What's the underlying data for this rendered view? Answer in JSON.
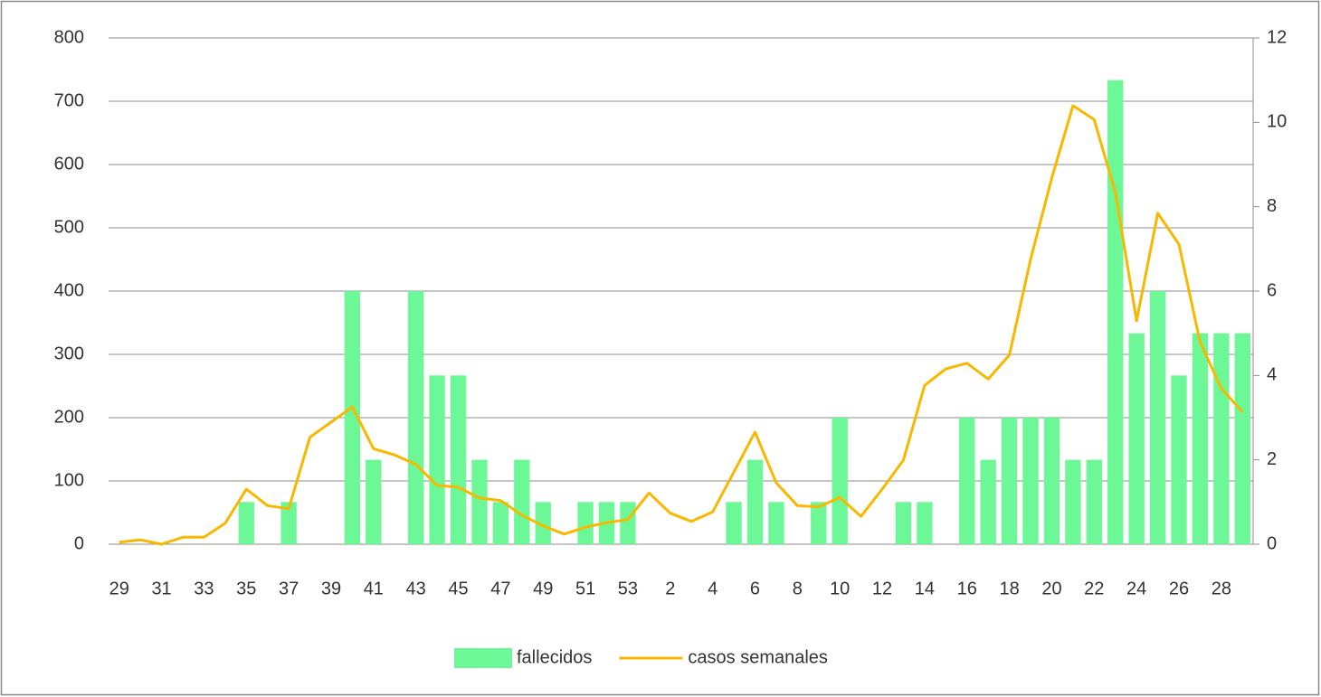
{
  "chart_data": {
    "type": "bar",
    "categories": [
      29,
      null,
      31,
      null,
      33,
      null,
      35,
      null,
      37,
      null,
      39,
      null,
      41,
      null,
      43,
      null,
      45,
      null,
      47,
      null,
      49,
      null,
      51,
      null,
      53,
      null,
      2,
      null,
      4,
      null,
      6,
      null,
      8,
      null,
      10,
      null,
      12,
      null,
      14,
      null,
      16,
      null,
      18,
      null,
      20,
      null,
      22,
      null,
      24,
      null,
      26,
      null,
      28,
      null
    ],
    "series": [
      {
        "name": "fallecidos",
        "type": "bar",
        "axis": "y2",
        "color": "#6cf896",
        "values": [
          0,
          0,
          0,
          0,
          0,
          0,
          1,
          0,
          1,
          0,
          0,
          6,
          2,
          0,
          6,
          4,
          4,
          2,
          1,
          2,
          1,
          0,
          1,
          1,
          1,
          0,
          0,
          0,
          0,
          1,
          2,
          1,
          0,
          1,
          3,
          0,
          0,
          1,
          1,
          0,
          3,
          2,
          3,
          3,
          3,
          2,
          2,
          11,
          5,
          6,
          4,
          5,
          5,
          5
        ]
      },
      {
        "name": "casos semanales",
        "type": "line",
        "color": "#f8b800",
        "values": [
          3,
          7,
          0,
          11,
          11,
          33,
          87,
          61,
          56,
          169,
          193,
          217,
          151,
          141,
          126,
          93,
          90,
          73,
          69,
          46,
          29,
          16,
          27,
          34,
          39,
          81,
          49,
          36,
          51,
          114,
          177,
          97,
          61,
          59,
          74,
          44,
          87,
          133,
          251,
          277,
          286,
          261,
          299,
          450,
          579,
          693,
          671,
          556,
          353,
          523,
          474,
          319,
          246,
          209
        ]
      }
    ],
    "ylim": [
      0,
      800
    ],
    "yticks": [
      0,
      100,
      200,
      300,
      400,
      500,
      600,
      700,
      800
    ],
    "y2lim": [
      0,
      12
    ],
    "y2ticks": [
      0,
      2,
      4,
      6,
      8,
      10,
      12
    ],
    "grid": true
  }
}
